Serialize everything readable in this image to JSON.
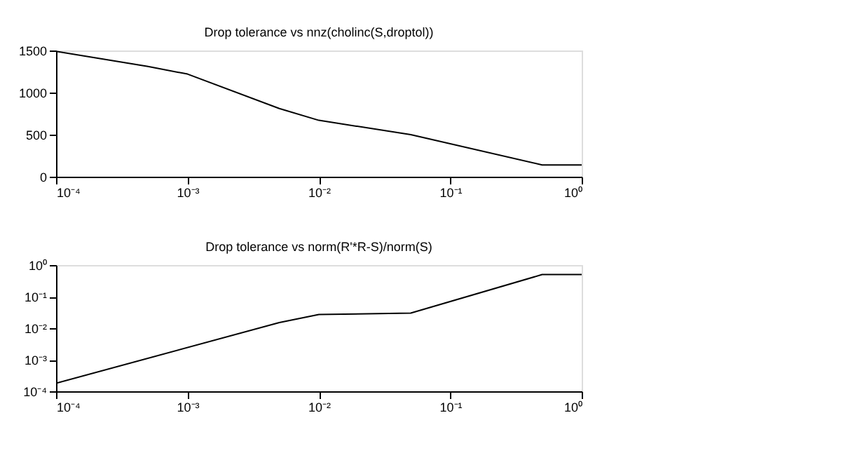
{
  "chart_data": [
    {
      "type": "line",
      "title": "Drop tolerance vs nnz(cholinc(S,droptol))",
      "series": [
        {
          "color": "#000000",
          "x": [
            0.0001,
            0.0005,
            0.001,
            0.005,
            0.01,
            0.05,
            0.5,
            1
          ],
          "values": [
            1490,
            1310,
            1220,
            810,
            670,
            500,
            140,
            140
          ]
        }
      ],
      "log": "x",
      "xlim": [
        0.0001,
        1
      ],
      "ylim": [
        0,
        1500
      ],
      "xticks": [
        {
          "value": 0.0001,
          "label": "10⁻⁴"
        },
        {
          "value": 0.001,
          "label": "10⁻³"
        },
        {
          "value": 0.01,
          "label": "10⁻²"
        },
        {
          "value": 0.1,
          "label": "10⁻¹"
        },
        {
          "value": 1,
          "label": "10⁰"
        }
      ],
      "yticks": [
        0,
        500,
        1000,
        1500
      ],
      "grid": false,
      "line_style": "solid",
      "marker": "none"
    },
    {
      "type": "line",
      "title": "Drop tolerance vs norm(R'*R-S)/norm(S)",
      "series": [
        {
          "color": "#000000",
          "x": [
            0.0001,
            0.005,
            0.01,
            0.05,
            0.5,
            1
          ],
          "values": [
            0.00018,
            0.015,
            0.027,
            0.03,
            0.5,
            0.5
          ]
        }
      ],
      "log": "xy",
      "xlim": [
        0.0001,
        1
      ],
      "ylim": [
        0.0001,
        1
      ],
      "xticks": [
        {
          "value": 0.0001,
          "label": "10⁻⁴"
        },
        {
          "value": 0.001,
          "label": "10⁻³"
        },
        {
          "value": 0.01,
          "label": "10⁻²"
        },
        {
          "value": 0.1,
          "label": "10⁻¹"
        },
        {
          "value": 1,
          "label": "10⁰"
        }
      ],
      "yticks": [
        {
          "value": 0.0001,
          "label": "10⁻⁴"
        },
        {
          "value": 0.001,
          "label": "10⁻³"
        },
        {
          "value": 0.01,
          "label": "10⁻²"
        },
        {
          "value": 0.1,
          "label": "10⁻¹"
        },
        {
          "value": 1,
          "label": "10⁰"
        }
      ],
      "grid": false,
      "line_style": "solid",
      "marker": "none"
    }
  ]
}
